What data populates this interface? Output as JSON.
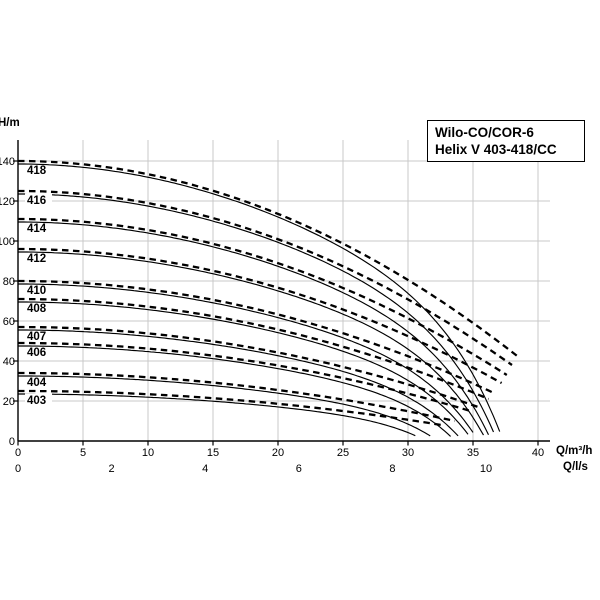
{
  "header": {
    "title_line1": "Wilo-CO/COR-6",
    "title_line2": "Helix V 403-418/CC"
  },
  "chart_data": {
    "type": "line",
    "title": "Wilo-CO/COR-6 Helix V 403-418/CC pump family curves",
    "ylabel": "H/m",
    "xlabel_primary": "Q/m³/h",
    "xlabel_secondary": "Q/l/s",
    "x_axis_m3h": {
      "ticks": [
        0,
        5,
        10,
        15,
        20,
        25,
        30,
        35,
        40
      ],
      "range": [
        0,
        41
      ]
    },
    "x_axis_ls": {
      "ticks": [
        0,
        2,
        4,
        6,
        8,
        10
      ],
      "range": [
        0,
        11.4
      ]
    },
    "y_axis": {
      "ticks": [
        0,
        20,
        40,
        60,
        80,
        100,
        120,
        140
      ],
      "range": [
        0,
        150
      ]
    },
    "grid": {
      "vertical_every_m3h": 5,
      "horizontal_every_m": 20
    },
    "line_styles": {
      "pump_curve": "dashed",
      "control_curve": "solid"
    },
    "legend": null,
    "series": [
      {
        "label": "418",
        "shutoff_head_m": 140,
        "max_flow_m3h": 38.5,
        "end_head_m": 42,
        "label_has_white_box": false
      },
      {
        "label": "416",
        "shutoff_head_m": 125,
        "max_flow_m3h": 38.0,
        "end_head_m": 38,
        "label_has_white_box": true
      },
      {
        "label": "414",
        "shutoff_head_m": 111,
        "max_flow_m3h": 37.6,
        "end_head_m": 33,
        "label_has_white_box": false
      },
      {
        "label": "412",
        "shutoff_head_m": 96,
        "max_flow_m3h": 37.2,
        "end_head_m": 29,
        "label_has_white_box": false
      },
      {
        "label": "410",
        "shutoff_head_m": 80,
        "max_flow_m3h": 36.6,
        "end_head_m": 24,
        "label_has_white_box": false
      },
      {
        "label": "408",
        "shutoff_head_m": 71,
        "max_flow_m3h": 36.2,
        "end_head_m": 21,
        "label_has_white_box": false
      },
      {
        "label": "407",
        "shutoff_head_m": 57,
        "max_flow_m3h": 35.4,
        "end_head_m": 17,
        "label_has_white_box": false
      },
      {
        "label": "406",
        "shutoff_head_m": 49,
        "max_flow_m3h": 34.8,
        "end_head_m": 15,
        "label_has_white_box": false
      },
      {
        "label": "404",
        "shutoff_head_m": 34,
        "max_flow_m3h": 33.6,
        "end_head_m": 10,
        "label_has_white_box": false
      },
      {
        "label": "403",
        "shutoff_head_m": 25,
        "max_flow_m3h": 32.6,
        "end_head_m": 8,
        "label_has_white_box": true
      }
    ]
  },
  "colors": {
    "curve": "#000000",
    "axis": "#000000",
    "grid": "#c9c9c9",
    "text": "#000000",
    "background": "#ffffff"
  }
}
